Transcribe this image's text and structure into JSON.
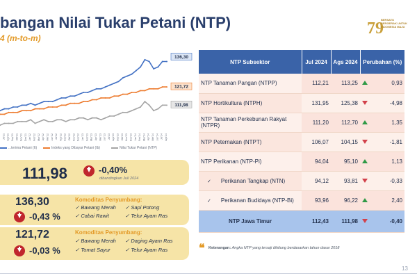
{
  "header": {
    "title": "bangan Nilai Tukar Petani (NTP)",
    "subtitle": "4 (m-to-m)",
    "logo_text": "BERSATU BERGERAK UNTUK INDONESIA MAJU"
  },
  "chart_data": {
    "type": "line",
    "x": [
      "Jun'21",
      "Jul'21",
      "Ags'21",
      "Sep'21",
      "Okt'21",
      "Nov'21",
      "Des'21",
      "Jan'22",
      "Feb'22",
      "Mar'22",
      "Apr'22",
      "Mei'22",
      "Jun'22",
      "Jul'22",
      "Ags'22",
      "Sep'22",
      "Okt'22",
      "Nov'22",
      "Des'22",
      "Jan'23",
      "Feb'23",
      "Mar'23",
      "Apr'23",
      "Mei'23",
      "Jun'23",
      "Jul'23",
      "Ags'23",
      "Sep'23",
      "Okt'23",
      "Nov'23",
      "Des'23",
      "Jan'24",
      "Feb'24",
      "Mar'24",
      "Apr'24",
      "Mei'24",
      "Jun'24",
      "Jul'24",
      "Ags'24"
    ],
    "series": [
      {
        "name": "...terima Petani (It)",
        "color": "#4472c4",
        "values": [
          109,
          110,
          110,
          111,
          111,
          112,
          112,
          113,
          112,
          113,
          114,
          114,
          114,
          115,
          116,
          116,
          117,
          117,
          118,
          119,
          119,
          120,
          121,
          121,
          122,
          123,
          124,
          125,
          127,
          128,
          129,
          131,
          133,
          137,
          136,
          132,
          133,
          136,
          136
        ]
      },
      {
        "name": "Indeks yang Dibayar Petani (Ib)",
        "color": "#ed7d31",
        "values": [
          107,
          107,
          108,
          108,
          108,
          109,
          109,
          109,
          110,
          110,
          110,
          111,
          111,
          111,
          112,
          112,
          113,
          113,
          113,
          114,
          114,
          115,
          115,
          116,
          116,
          116,
          117,
          117,
          118,
          118,
          119,
          119,
          120,
          120,
          121,
          121,
          121,
          122,
          122
        ]
      },
      {
        "name": "Nilai Tukar Petani (NTP)",
        "color": "#a5a5a5",
        "values": [
          101,
          102,
          102,
          102,
          103,
          103,
          103,
          104,
          102,
          103,
          104,
          103,
          103,
          104,
          104,
          103,
          104,
          104,
          105,
          105,
          104,
          105,
          105,
          104,
          105,
          106,
          106,
          107,
          108,
          108,
          109,
          110,
          111,
          114,
          112,
          109,
          110,
          112,
          112
        ]
      }
    ],
    "end_labels": [
      "136,30",
      "121,72",
      "111,98"
    ],
    "ylim": [
      98,
      140
    ],
    "grid": false,
    "legend": "bottom"
  },
  "legend": {
    "items": [
      "...terima Petani (It)",
      "Indeks yang Dibayar Petani (Ib)",
      "Nilai Tukar Petani (NTP)"
    ]
  },
  "summary": {
    "ntp": {
      "value": "111,98",
      "change": "-0,40%",
      "note": "dibandingkan Juli 2024"
    },
    "it": {
      "value": "136,30",
      "change": "-0,43 %",
      "komoditas_title": "Komoditas Penyumbang:",
      "items": [
        "Bawang Merah",
        "Sapi Potong",
        "Cabai Rawit",
        "Telur Ayam Ras"
      ]
    },
    "ib": {
      "value": "121,72",
      "change": "-0,03 %",
      "komoditas_title": "Komoditas Penyumbang:",
      "items": [
        "Bawang Merah",
        "Daging Ayam Ras",
        "Tomat Sayur",
        "Telur Ayam Ras"
      ]
    }
  },
  "table": {
    "headers": [
      "NTP Subsektor",
      "Jul 2024",
      "Ags 2024",
      "Perubahan (%)"
    ],
    "rows": [
      {
        "name": "NTP Tanaman Pangan (NTPP)",
        "jul": "112,21",
        "ags": "113,25",
        "dir": "up",
        "chg": "0,93"
      },
      {
        "name": "NTP Hortikultura (NTPH)",
        "jul": "131,95",
        "ags": "125,38",
        "dir": "down",
        "chg": "-4,98"
      },
      {
        "name": "NTP Tanaman Perkebunan Rakyat (NTPR)",
        "jul": "111,20",
        "ags": "112,70",
        "dir": "up",
        "chg": "1,35"
      },
      {
        "name": "NTP Peternakan (NTPT)",
        "jul": "106,07",
        "ags": "104,15",
        "dir": "down",
        "chg": "-1,81"
      },
      {
        "name": "NTP Perikanan (NTP-Pi)",
        "jul": "94,04",
        "ags": "95,10",
        "dir": "up",
        "chg": "1,13"
      },
      {
        "name": "Perikanan Tangkap (NTN)",
        "jul": "94,12",
        "ags": "93,81",
        "dir": "down",
        "chg": "-0,33",
        "sub": true
      },
      {
        "name": "Perikanan Budidaya (NTP-Bi)",
        "jul": "93,96",
        "ags": "96,22",
        "dir": "up",
        "chg": "2,40",
        "sub": true
      }
    ],
    "total": {
      "name": "NTP Jawa Timur",
      "jul": "112,43",
      "ags": "111,98",
      "dir": "down",
      "chg": "-0,40"
    }
  },
  "footnote": {
    "label": "Keterangan:",
    "text": "Angka NTP yang tersaji dihitung berdasarkan tahun dasar 2018"
  },
  "page_number": "13"
}
